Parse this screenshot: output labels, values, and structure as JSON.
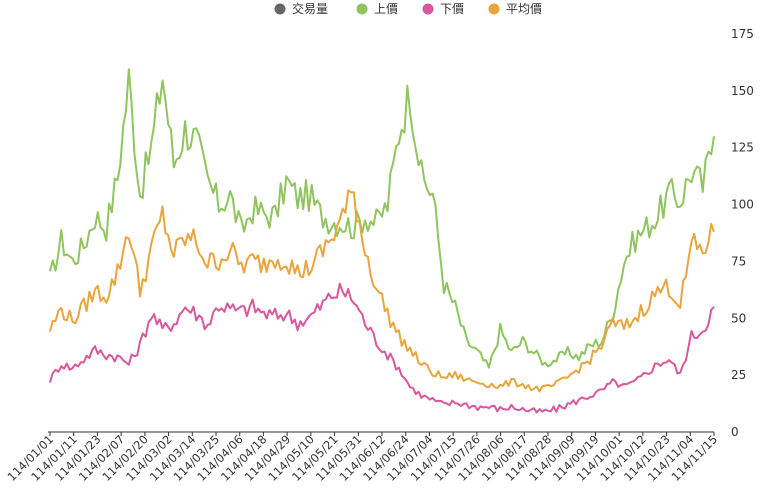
{
  "chart_data": {
    "type": "line",
    "legend": {
      "placement": "top-center",
      "items": [
        {
          "name": "交易量",
          "color": "#666666",
          "marker": "circle"
        },
        {
          "name": "上價",
          "color": "#90c45e",
          "marker": "circle"
        },
        {
          "name": "下價",
          "color": "#d7589d",
          "marker": "circle"
        },
        {
          "name": "平均價",
          "color": "#e9a53c",
          "marker": "circle"
        }
      ]
    },
    "y_axis": {
      "position": "right",
      "min": 0,
      "max": 175,
      "ticks": [
        0,
        25,
        50,
        75,
        100,
        125,
        150,
        175
      ]
    },
    "x_tick_labels": [
      "114/01/01",
      "114/01/11",
      "114/01/23",
      "114/02/07",
      "114/02/20",
      "114/03/02",
      "114/03/14",
      "114/03/25",
      "114/04/06",
      "114/04/18",
      "114/04/29",
      "114/05/10",
      "114/05/21",
      "114/05/31",
      "114/06/12",
      "114/06/24",
      "114/07/04",
      "114/07/15",
      "114/07/26",
      "114/08/06",
      "114/08/17",
      "114/08/28",
      "114/09/09",
      "114/09/19",
      "114/10/01",
      "114/10/12",
      "114/10/23",
      "114/11/04",
      "114/11/15"
    ],
    "n_points": 60,
    "series": [
      {
        "name": "上價",
        "color": "#90c45e",
        "values": [
          67,
          84,
          75,
          82,
          95,
          90,
          112,
          155,
          105,
          125,
          157,
          118,
          133,
          128,
          110,
          100,
          104,
          88,
          98,
          96,
          95,
          110,
          103,
          104,
          96,
          93,
          92,
          90,
          95,
          92,
          100,
          132,
          150,
          112,
          105,
          65,
          55,
          40,
          35,
          28,
          45,
          35,
          40,
          35,
          30,
          32,
          35,
          33,
          38,
          40,
          52,
          75,
          85,
          90,
          95,
          105,
          102,
          115,
          108,
          130
        ]
      },
      {
        "name": "下價",
        "color": "#d7589d",
        "values": [
          23,
          30,
          28,
          32,
          36,
          34,
          33,
          30,
          38,
          52,
          45,
          48,
          55,
          52,
          47,
          56,
          54,
          53,
          55,
          52,
          51,
          52,
          48,
          50,
          55,
          60,
          62,
          58,
          48,
          40,
          34,
          28,
          20,
          16,
          14,
          12,
          13,
          12,
          11,
          11,
          10,
          11,
          10,
          9,
          9,
          10,
          12,
          14,
          16,
          18,
          22,
          20,
          22,
          26,
          30,
          32,
          25,
          42,
          45,
          55
        ]
      },
      {
        "name": "平均價",
        "color": "#e9a53c",
        "values": [
          45,
          54,
          49,
          55,
          62,
          60,
          70,
          90,
          62,
          80,
          95,
          78,
          85,
          84,
          74,
          76,
          80,
          73,
          75,
          74,
          77,
          76,
          70,
          72,
          78,
          85,
          95,
          105,
          80,
          64,
          52,
          42,
          36,
          30,
          26,
          24,
          25,
          23,
          22,
          21,
          20,
          22,
          21,
          19,
          19,
          21,
          24,
          28,
          32,
          38,
          48,
          46,
          50,
          56,
          62,
          64,
          56,
          82,
          80,
          88
        ]
      }
    ]
  }
}
